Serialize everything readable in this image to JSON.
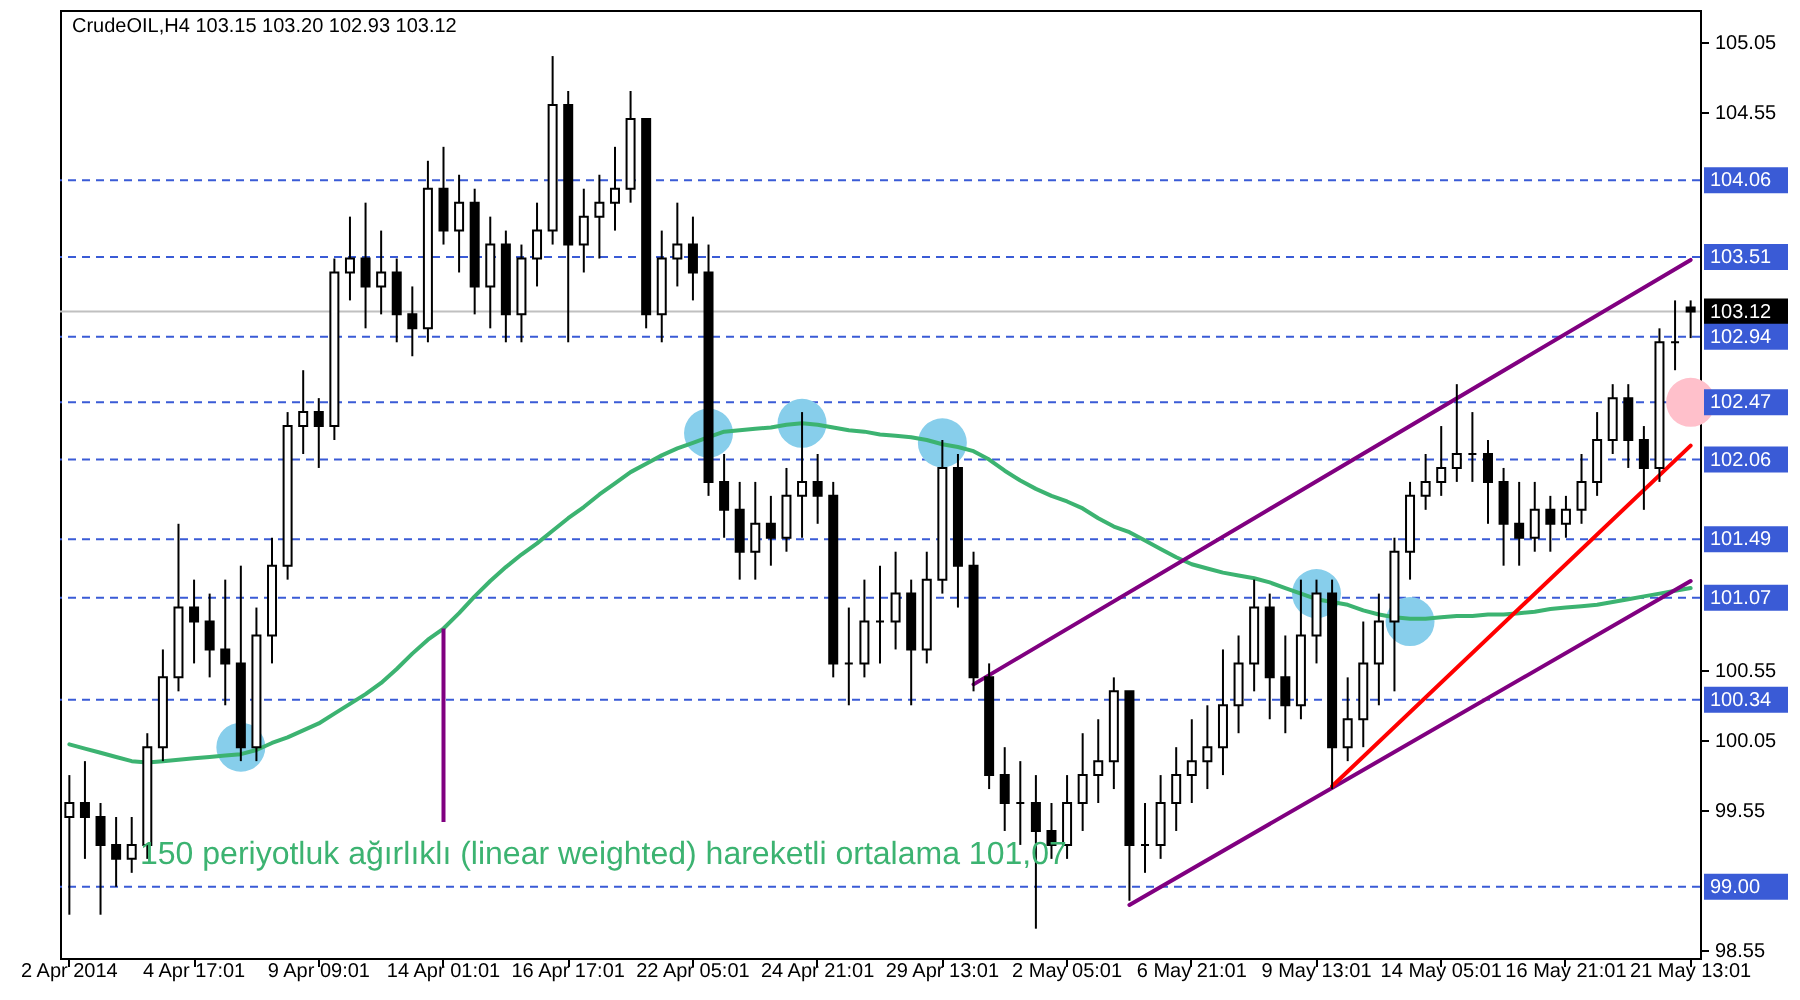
{
  "chart_data": {
    "type": "candlestick",
    "title": "CrudeOIL,H4  103.15 103.20 102.93 103.12",
    "categories": [
      "2 Apr 2014",
      null,
      null,
      null,
      null,
      null,
      null,
      null,
      "4 Apr 17:01",
      null,
      null,
      null,
      null,
      null,
      null,
      null,
      "9 Apr 09:01",
      null,
      null,
      null,
      null,
      null,
      null,
      null,
      "14 Apr 01:01",
      null,
      null,
      null,
      null,
      null,
      null,
      null,
      "16 Apr 17:01",
      null,
      null,
      null,
      null,
      null,
      null,
      null,
      "22 Apr 05:01",
      null,
      null,
      null,
      null,
      null,
      null,
      null,
      "24 Apr 21:01",
      null,
      null,
      null,
      null,
      null,
      null,
      null,
      "29 Apr 13:01",
      null,
      null,
      null,
      null,
      null,
      null,
      null,
      "2 May 05:01",
      null,
      null,
      null,
      null,
      null,
      null,
      null,
      "6 May 21:01",
      null,
      null,
      null,
      null,
      null,
      null,
      null,
      "9 May 13:01",
      null,
      null,
      null,
      null,
      null,
      null,
      null,
      "14 May 05:01",
      null,
      null,
      null,
      null,
      null,
      null,
      null,
      "16 May 21:01",
      null,
      null,
      null,
      null,
      null,
      null,
      null,
      "21 May 13:01"
    ],
    "ohlc": [
      [
        99.5,
        99.8,
        98.8,
        99.6
      ],
      [
        99.6,
        99.9,
        99.2,
        99.5
      ],
      [
        99.5,
        99.6,
        98.8,
        99.3
      ],
      [
        99.3,
        99.5,
        99.0,
        99.2
      ],
      [
        99.2,
        99.5,
        99.1,
        99.3
      ],
      [
        99.3,
        100.1,
        99.2,
        100.0
      ],
      [
        100.0,
        100.7,
        99.9,
        100.5
      ],
      [
        100.5,
        101.6,
        100.4,
        101.0
      ],
      [
        101.0,
        101.2,
        100.6,
        100.9
      ],
      [
        100.9,
        101.1,
        100.5,
        100.7
      ],
      [
        100.7,
        101.2,
        100.3,
        100.6
      ],
      [
        100.6,
        101.3,
        99.9,
        100.0
      ],
      [
        100.0,
        101.0,
        99.9,
        100.8
      ],
      [
        100.8,
        101.5,
        100.6,
        101.3
      ],
      [
        101.3,
        102.4,
        101.2,
        102.3
      ],
      [
        102.3,
        102.7,
        102.1,
        102.4
      ],
      [
        102.4,
        102.5,
        102.0,
        102.3
      ],
      [
        102.3,
        103.5,
        102.2,
        103.4
      ],
      [
        103.4,
        103.8,
        103.2,
        103.5
      ],
      [
        103.5,
        103.9,
        103.0,
        103.3
      ],
      [
        103.3,
        103.7,
        103.1,
        103.4
      ],
      [
        103.4,
        103.5,
        102.9,
        103.1
      ],
      [
        103.1,
        103.3,
        102.8,
        103.0
      ],
      [
        103.0,
        104.2,
        102.9,
        104.0
      ],
      [
        104.0,
        104.3,
        103.6,
        103.7
      ],
      [
        103.7,
        104.1,
        103.4,
        103.9
      ],
      [
        103.9,
        104.0,
        103.1,
        103.3
      ],
      [
        103.3,
        103.8,
        103.0,
        103.6
      ],
      [
        103.6,
        103.7,
        102.9,
        103.1
      ],
      [
        103.1,
        103.6,
        102.9,
        103.5
      ],
      [
        103.5,
        103.9,
        103.3,
        103.7
      ],
      [
        103.7,
        104.95,
        103.6,
        104.6
      ],
      [
        104.6,
        104.7,
        102.9,
        103.6
      ],
      [
        103.6,
        104.0,
        103.4,
        103.8
      ],
      [
        103.8,
        104.1,
        103.5,
        103.9
      ],
      [
        103.9,
        104.3,
        103.7,
        104.0
      ],
      [
        104.0,
        104.7,
        103.9,
        104.5
      ],
      [
        104.5,
        104.5,
        103.0,
        103.1
      ],
      [
        103.1,
        103.7,
        102.9,
        103.5
      ],
      [
        103.5,
        103.9,
        103.3,
        103.6
      ],
      [
        103.6,
        103.8,
        103.2,
        103.4
      ],
      [
        103.4,
        103.6,
        101.8,
        101.9
      ],
      [
        101.9,
        102.1,
        101.5,
        101.7
      ],
      [
        101.7,
        101.9,
        101.2,
        101.4
      ],
      [
        101.4,
        101.9,
        101.2,
        101.6
      ],
      [
        101.6,
        101.8,
        101.3,
        101.5
      ],
      [
        101.5,
        102.0,
        101.4,
        101.8
      ],
      [
        101.8,
        102.4,
        101.5,
        101.9
      ],
      [
        101.9,
        102.1,
        101.6,
        101.8
      ],
      [
        101.8,
        101.9,
        100.5,
        100.6
      ],
      [
        100.6,
        101.0,
        100.3,
        100.6
      ],
      [
        100.6,
        101.2,
        100.5,
        100.9
      ],
      [
        100.9,
        101.3,
        100.6,
        100.9
      ],
      [
        100.9,
        101.4,
        100.7,
        101.1
      ],
      [
        101.1,
        101.2,
        100.3,
        100.7
      ],
      [
        100.7,
        101.4,
        100.6,
        101.2
      ],
      [
        101.2,
        102.2,
        101.1,
        102.0
      ],
      [
        102.0,
        102.1,
        101.0,
        101.3
      ],
      [
        101.3,
        101.4,
        100.4,
        100.5
      ],
      [
        100.5,
        100.6,
        99.7,
        99.8
      ],
      [
        99.8,
        100.0,
        99.4,
        99.6
      ],
      [
        99.6,
        99.9,
        99.3,
        99.6
      ],
      [
        99.6,
        99.8,
        98.7,
        99.4
      ],
      [
        99.4,
        99.6,
        99.2,
        99.3
      ],
      [
        99.3,
        99.8,
        99.2,
        99.6
      ],
      [
        99.6,
        100.1,
        99.4,
        99.8
      ],
      [
        99.8,
        100.2,
        99.6,
        99.9
      ],
      [
        99.9,
        100.5,
        99.7,
        100.4
      ],
      [
        100.4,
        100.4,
        98.9,
        99.3
      ],
      [
        99.3,
        99.6,
        99.1,
        99.3
      ],
      [
        99.3,
        99.8,
        99.2,
        99.6
      ],
      [
        99.6,
        100.0,
        99.4,
        99.8
      ],
      [
        99.8,
        100.2,
        99.6,
        99.9
      ],
      [
        99.9,
        100.3,
        99.7,
        100.0
      ],
      [
        100.0,
        100.7,
        99.8,
        100.3
      ],
      [
        100.3,
        100.8,
        100.1,
        100.6
      ],
      [
        100.6,
        101.2,
        100.4,
        101.0
      ],
      [
        101.0,
        101.1,
        100.2,
        100.5
      ],
      [
        100.5,
        100.8,
        100.1,
        100.3
      ],
      [
        100.3,
        101.2,
        100.2,
        100.8
      ],
      [
        100.8,
        101.2,
        100.6,
        101.1
      ],
      [
        101.1,
        101.2,
        99.7,
        100.0
      ],
      [
        100.0,
        100.5,
        99.9,
        100.2
      ],
      [
        100.2,
        100.9,
        100.0,
        100.6
      ],
      [
        100.6,
        101.1,
        100.3,
        100.9
      ],
      [
        100.9,
        101.5,
        100.4,
        101.4
      ],
      [
        101.4,
        101.9,
        101.2,
        101.8
      ],
      [
        101.8,
        102.1,
        101.7,
        101.9
      ],
      [
        101.9,
        102.3,
        101.8,
        102.0
      ],
      [
        102.0,
        102.6,
        101.9,
        102.1
      ],
      [
        102.1,
        102.4,
        101.9,
        102.1
      ],
      [
        102.1,
        102.2,
        101.6,
        101.9
      ],
      [
        101.9,
        102.0,
        101.3,
        101.6
      ],
      [
        101.6,
        101.9,
        101.3,
        101.5
      ],
      [
        101.5,
        101.9,
        101.4,
        101.7
      ],
      [
        101.7,
        101.8,
        101.4,
        101.6
      ],
      [
        101.6,
        101.8,
        101.5,
        101.7
      ],
      [
        101.7,
        102.1,
        101.6,
        101.9
      ],
      [
        101.9,
        102.4,
        101.8,
        102.2
      ],
      [
        102.2,
        102.6,
        102.1,
        102.5
      ],
      [
        102.5,
        102.6,
        102.0,
        102.2
      ],
      [
        102.2,
        102.3,
        101.7,
        102.0
      ],
      [
        102.0,
        103.0,
        101.9,
        102.9
      ],
      [
        102.9,
        103.2,
        102.7,
        102.9
      ],
      [
        103.15,
        103.2,
        102.93,
        103.12
      ]
    ],
    "series": [
      {
        "type": "scatter",
        "color": "#87ceeb",
        "values": [
          null,
          null,
          null,
          null,
          null,
          null,
          null,
          null,
          null,
          null,
          null,
          100.0,
          null,
          null,
          null,
          null,
          null,
          null,
          null,
          null,
          null,
          null,
          null,
          null,
          null,
          null,
          null,
          null,
          null,
          null,
          null,
          null,
          null,
          null,
          null,
          null,
          null,
          null,
          null,
          null,
          null,
          102.25,
          null,
          null,
          null,
          null,
          null,
          102.32,
          null,
          null,
          null,
          null,
          null,
          null,
          null,
          null,
          102.18,
          null,
          null,
          null,
          null,
          null,
          null,
          null,
          null,
          null,
          null,
          null,
          null,
          null,
          null,
          null,
          null,
          null,
          null,
          null,
          null,
          null,
          null,
          null,
          101.1,
          null,
          null,
          null,
          null,
          null,
          100.9,
          null,
          null,
          null,
          null,
          null,
          null,
          null,
          null,
          null,
          null,
          null,
          null,
          null,
          null,
          null,
          null,
          null,
          null
        ]
      },
      {
        "type": "scatter",
        "color": "#ffc0cb",
        "values": [
          null,
          null,
          null,
          null,
          null,
          null,
          null,
          null,
          null,
          null,
          null,
          null,
          null,
          null,
          null,
          null,
          null,
          null,
          null,
          null,
          null,
          null,
          null,
          null,
          null,
          null,
          null,
          null,
          null,
          null,
          null,
          null,
          null,
          null,
          null,
          null,
          null,
          null,
          null,
          null,
          null,
          null,
          null,
          null,
          null,
          null,
          null,
          null,
          null,
          null,
          null,
          null,
          null,
          null,
          null,
          null,
          null,
          null,
          null,
          null,
          null,
          null,
          null,
          null,
          null,
          null,
          null,
          null,
          null,
          null,
          null,
          null,
          null,
          null,
          null,
          null,
          null,
          null,
          null,
          null,
          null,
          null,
          null,
          null,
          null,
          null,
          null,
          null,
          null,
          null,
          null,
          null,
          null,
          null,
          null,
          null,
          null,
          null,
          null,
          null,
          null,
          null,
          null,
          null,
          102.47
        ]
      },
      {
        "type": "line",
        "color": "#3cb371",
        "values": [
          100.02,
          99.99,
          99.96,
          99.93,
          99.9,
          99.89,
          99.9,
          99.91,
          99.92,
          99.93,
          99.94,
          99.95,
          99.98,
          100.03,
          100.07,
          100.12,
          100.17,
          100.24,
          100.31,
          100.38,
          100.46,
          100.56,
          100.67,
          100.77,
          100.85,
          100.96,
          101.08,
          101.19,
          101.29,
          101.38,
          101.46,
          101.55,
          101.64,
          101.72,
          101.81,
          101.89,
          101.97,
          102.03,
          102.09,
          102.14,
          102.18,
          102.22,
          102.26,
          102.27,
          102.28,
          102.29,
          102.31,
          102.32,
          102.31,
          102.29,
          102.27,
          102.26,
          102.24,
          102.23,
          102.22,
          102.2,
          102.17,
          102.15,
          102.12,
          102.06,
          101.98,
          101.91,
          101.85,
          101.8,
          101.76,
          101.71,
          101.64,
          101.58,
          101.54,
          101.48,
          101.42,
          101.36,
          101.31,
          101.28,
          101.25,
          101.23,
          101.21,
          101.18,
          101.14,
          101.1,
          101.06,
          101.04,
          101.02,
          100.98,
          100.95,
          100.93,
          100.92,
          100.92,
          100.93,
          100.94,
          100.94,
          100.95,
          100.95,
          100.96,
          100.97,
          100.99,
          101.0,
          101.01,
          101.02,
          101.04,
          101.06,
          101.08,
          101.1,
          101.12,
          101.14
        ]
      },
      {
        "type": "line",
        "color": "#800080",
        "values": [
          null,
          null,
          null,
          null,
          null,
          null,
          null,
          null,
          null,
          null,
          null,
          null,
          null,
          null,
          null,
          null,
          null,
          null,
          null,
          null,
          null,
          null,
          null,
          null,
          null,
          null,
          null,
          null,
          null,
          null,
          null,
          null,
          null,
          null,
          null,
          null,
          null,
          null,
          null,
          null,
          null,
          null,
          null,
          null,
          null,
          null,
          null,
          null,
          null,
          null,
          null,
          null,
          null,
          null,
          null,
          null,
          null,
          null,
          100.45,
          null,
          null,
          null,
          null,
          null,
          null,
          null,
          null,
          null,
          null,
          null,
          null,
          null,
          null,
          null,
          null,
          null,
          null,
          null,
          null,
          null,
          null,
          null,
          null,
          null,
          null,
          null,
          null,
          null,
          null,
          null,
          null,
          null,
          null,
          null,
          null,
          null,
          null,
          null,
          null,
          null,
          null,
          null,
          null,
          null,
          103.49
        ]
      },
      {
        "type": "line",
        "color": "#800080",
        "values": [
          null,
          null,
          null,
          null,
          null,
          null,
          null,
          null,
          null,
          null,
          null,
          null,
          null,
          null,
          null,
          null,
          null,
          null,
          null,
          null,
          null,
          null,
          null,
          null,
          null,
          null,
          null,
          null,
          null,
          null,
          null,
          null,
          null,
          null,
          null,
          null,
          null,
          null,
          null,
          null,
          null,
          null,
          null,
          null,
          null,
          null,
          null,
          null,
          null,
          null,
          null,
          null,
          null,
          null,
          null,
          null,
          null,
          null,
          null,
          null,
          null,
          null,
          null,
          null,
          null,
          null,
          null,
          null,
          98.87,
          null,
          null,
          null,
          null,
          null,
          null,
          null,
          null,
          null,
          null,
          null,
          null,
          null,
          null,
          null,
          null,
          null,
          null,
          null,
          null,
          null,
          null,
          null,
          null,
          null,
          null,
          null,
          null,
          null,
          null,
          null,
          null,
          null,
          null,
          null,
          101.19
        ]
      },
      {
        "type": "line",
        "color": "#ff0000",
        "values": [
          null,
          null,
          null,
          null,
          null,
          null,
          null,
          null,
          null,
          null,
          null,
          null,
          null,
          null,
          null,
          null,
          null,
          null,
          null,
          null,
          null,
          null,
          null,
          null,
          null,
          null,
          null,
          null,
          null,
          null,
          null,
          null,
          null,
          null,
          null,
          null,
          null,
          null,
          null,
          null,
          null,
          null,
          null,
          null,
          null,
          null,
          null,
          null,
          null,
          null,
          null,
          null,
          null,
          null,
          null,
          null,
          null,
          null,
          null,
          null,
          null,
          null,
          null,
          null,
          null,
          null,
          null,
          null,
          null,
          null,
          null,
          null,
          null,
          null,
          null,
          null,
          null,
          null,
          null,
          null,
          null,
          99.72,
          null,
          null,
          null,
          null,
          null,
          null,
          null,
          null,
          null,
          null,
          null,
          null,
          null,
          null,
          null,
          null,
          null,
          null,
          null,
          null,
          null,
          null,
          102.16
        ]
      }
    ],
    "ylim": [
      98.49,
      105.28
    ],
    "yticks": [
      98.55,
      99.55,
      100.05,
      100.55,
      104.55,
      105.05
    ],
    "ref_lines": [
      {
        "axis": "y",
        "value": 104.06,
        "label": "104.06",
        "color": "#3a5bd6",
        "line_style": "dashed"
      },
      {
        "axis": "y",
        "value": 103.51,
        "label": "103.51",
        "color": "#3a5bd6",
        "line_style": "dashed"
      },
      {
        "axis": "y",
        "value": 103.12,
        "label": "103.12",
        "color": "#c0c0c0",
        "line_style": "solid"
      },
      {
        "axis": "y",
        "value": 102.94,
        "label": "102.94",
        "color": "#3a5bd6",
        "line_style": "dashed"
      },
      {
        "axis": "y",
        "value": 102.47,
        "label": "102.47",
        "color": "#3a5bd6",
        "line_style": "dashed"
      },
      {
        "axis": "y",
        "value": 102.06,
        "label": "102.06",
        "color": "#3a5bd6",
        "line_style": "dashed"
      },
      {
        "axis": "y",
        "value": 101.49,
        "label": "101.49",
        "color": "#3a5bd6",
        "line_style": "dashed"
      },
      {
        "axis": "y",
        "value": 101.07,
        "label": "101.07",
        "color": "#3a5bd6",
        "line_style": "dashed"
      },
      {
        "axis": "y",
        "value": 100.34,
        "label": "100.34",
        "color": "#3a5bd6",
        "line_style": "dashed"
      },
      {
        "axis": "y",
        "value": 99.0,
        "label": "99.00",
        "color": "#3a5bd6",
        "line_style": "dashed"
      }
    ],
    "annotations": [
      {
        "text": "150 periyotluk ağırlıklı (linear weighted) hareketli ortalama 101,07",
        "x": "14 Apr 01:01",
        "y": 100.85
      }
    ]
  }
}
